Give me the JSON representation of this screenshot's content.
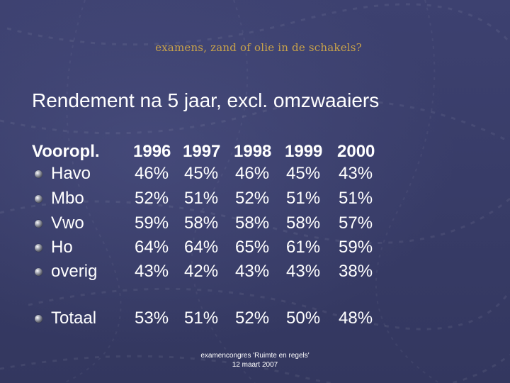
{
  "slide": {
    "topic": "examens, zand of olie in de schakels?",
    "title": "Rendement na 5 jaar, excl. omzwaaiers",
    "table": {
      "row_header": "Vooropl.",
      "years": [
        "1996",
        "1997",
        "1998",
        "1999",
        "2000"
      ],
      "rows": [
        {
          "label": "Havo",
          "values": [
            "46%",
            "45%",
            "46%",
            "45%",
            "43%"
          ]
        },
        {
          "label": "Mbo",
          "values": [
            "52%",
            "51%",
            "52%",
            "51%",
            "51%"
          ]
        },
        {
          "label": "Vwo",
          "values": [
            "59%",
            "58%",
            "58%",
            "58%",
            "57%"
          ]
        },
        {
          "label": "Ho",
          "values": [
            "64%",
            "64%",
            "65%",
            "61%",
            "59%"
          ]
        },
        {
          "label": "overig",
          "values": [
            "43%",
            "42%",
            "43%",
            "43%",
            "38%"
          ]
        }
      ],
      "total": {
        "label": "Totaal",
        "values": [
          "53%",
          "51%",
          "52%",
          "50%",
          "48%"
        ]
      }
    },
    "footer": {
      "line1": "examencongres 'Ruimte en regels'",
      "line2": "12 maart 2007"
    },
    "colors": {
      "background": "#3a3e68",
      "topic": "#c8a24a",
      "text": "#ffffff"
    }
  }
}
